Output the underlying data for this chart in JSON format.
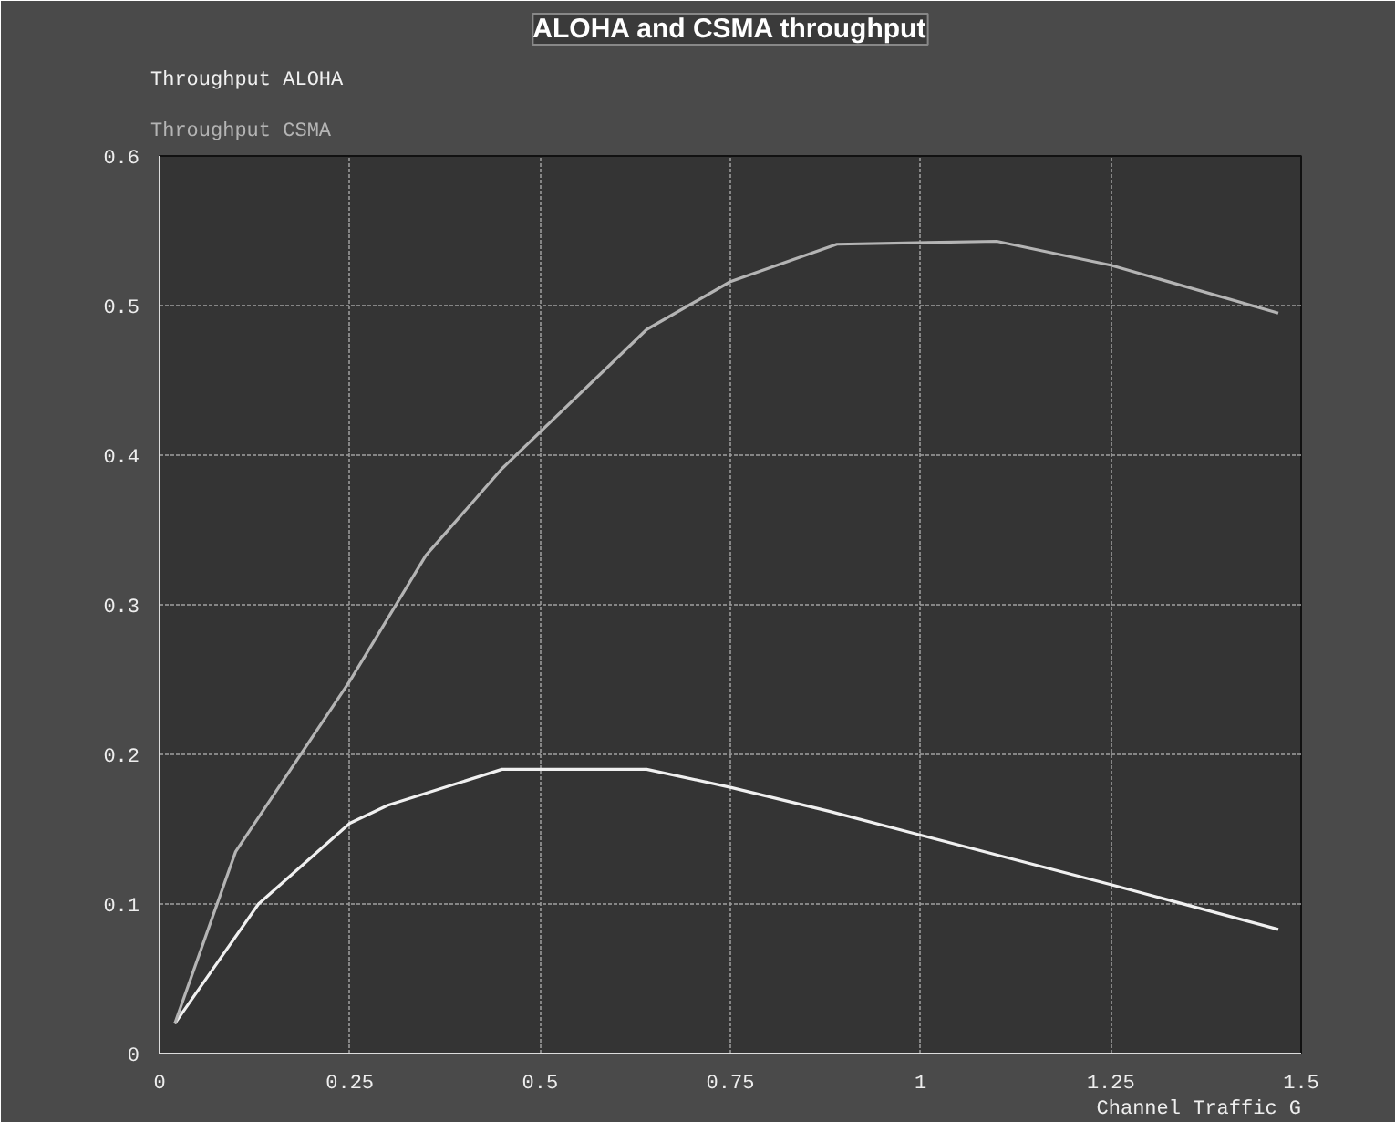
{
  "chart_data": {
    "type": "line",
    "title": "ALOHA and CSMA throughput",
    "xlabel": "Channel Traffic G",
    "xlim": [
      0,
      1.5
    ],
    "ylim": [
      0,
      0.6
    ],
    "xticks": [
      0,
      0.25,
      0.5,
      0.75,
      1,
      1.25,
      1.5
    ],
    "yticks": [
      0,
      0.1,
      0.2,
      0.3,
      0.4,
      0.5,
      0.6
    ],
    "grid": true,
    "marker": "none",
    "line_style": "solid",
    "series": [
      {
        "name": "Throughput ALOHA",
        "color": "#f0f0f0",
        "x": [
          0.02,
          0.13,
          0.25,
          0.3,
          0.45,
          0.54,
          0.64,
          0.75,
          0.88,
          1.0,
          1.25,
          1.47
        ],
        "values": [
          0.02,
          0.1,
          0.154,
          0.166,
          0.19,
          0.19,
          0.19,
          0.178,
          0.162,
          0.146,
          0.113,
          0.083
        ]
      },
      {
        "name": "Throughput CSMA",
        "color": "#b4b4b4",
        "x": [
          0.02,
          0.1,
          0.25,
          0.35,
          0.45,
          0.64,
          0.75,
          0.89,
          1.1,
          1.25,
          1.47
        ],
        "values": [
          0.02,
          0.135,
          0.249,
          0.333,
          0.391,
          0.484,
          0.516,
          0.541,
          0.543,
          0.527,
          0.495
        ]
      }
    ]
  }
}
